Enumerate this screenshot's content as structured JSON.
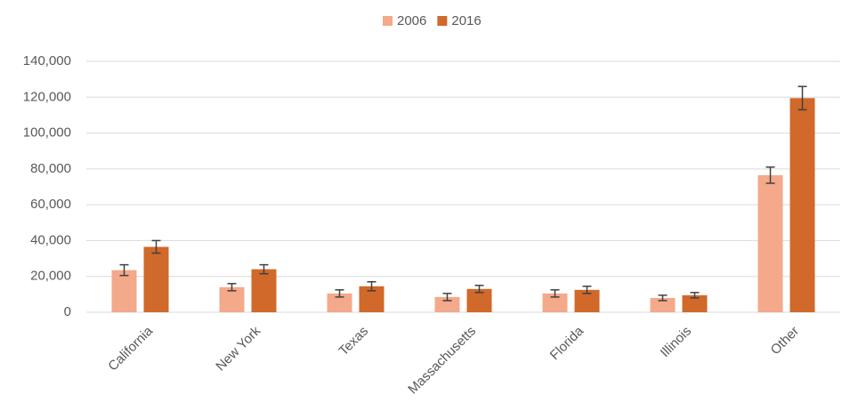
{
  "chart_data": {
    "type": "bar",
    "categories": [
      "California",
      "New York",
      "Texas",
      "Massachusetts",
      "Florida",
      "Illinois",
      "Other"
    ],
    "series": [
      {
        "name": "2006",
        "color": "#f4a98a",
        "values": [
          23500,
          14000,
          10500,
          8500,
          10500,
          8000,
          76500
        ],
        "errors": [
          3000,
          2000,
          2000,
          2000,
          2000,
          1500,
          4500
        ]
      },
      {
        "name": "2016",
        "color": "#d0692a",
        "values": [
          36500,
          24000,
          14500,
          13000,
          12500,
          9500,
          119500
        ],
        "errors": [
          3500,
          2500,
          2500,
          2000,
          2000,
          1500,
          6500
        ]
      }
    ],
    "ylim": [
      0,
      140000
    ],
    "yticks": [
      0,
      {
        "value": 20000,
        "label": "20,000"
      },
      {
        "value": 40000,
        "label": "40,000"
      },
      {
        "value": 60000,
        "label": "60,000"
      },
      {
        "value": 80000,
        "label": "80,000"
      },
      {
        "value": 100000,
        "label": "100,000"
      },
      {
        "value": 120000,
        "label": "120,000"
      },
      {
        "value": 140000,
        "label": "140,000"
      }
    ],
    "grid": true,
    "legend": "top"
  }
}
